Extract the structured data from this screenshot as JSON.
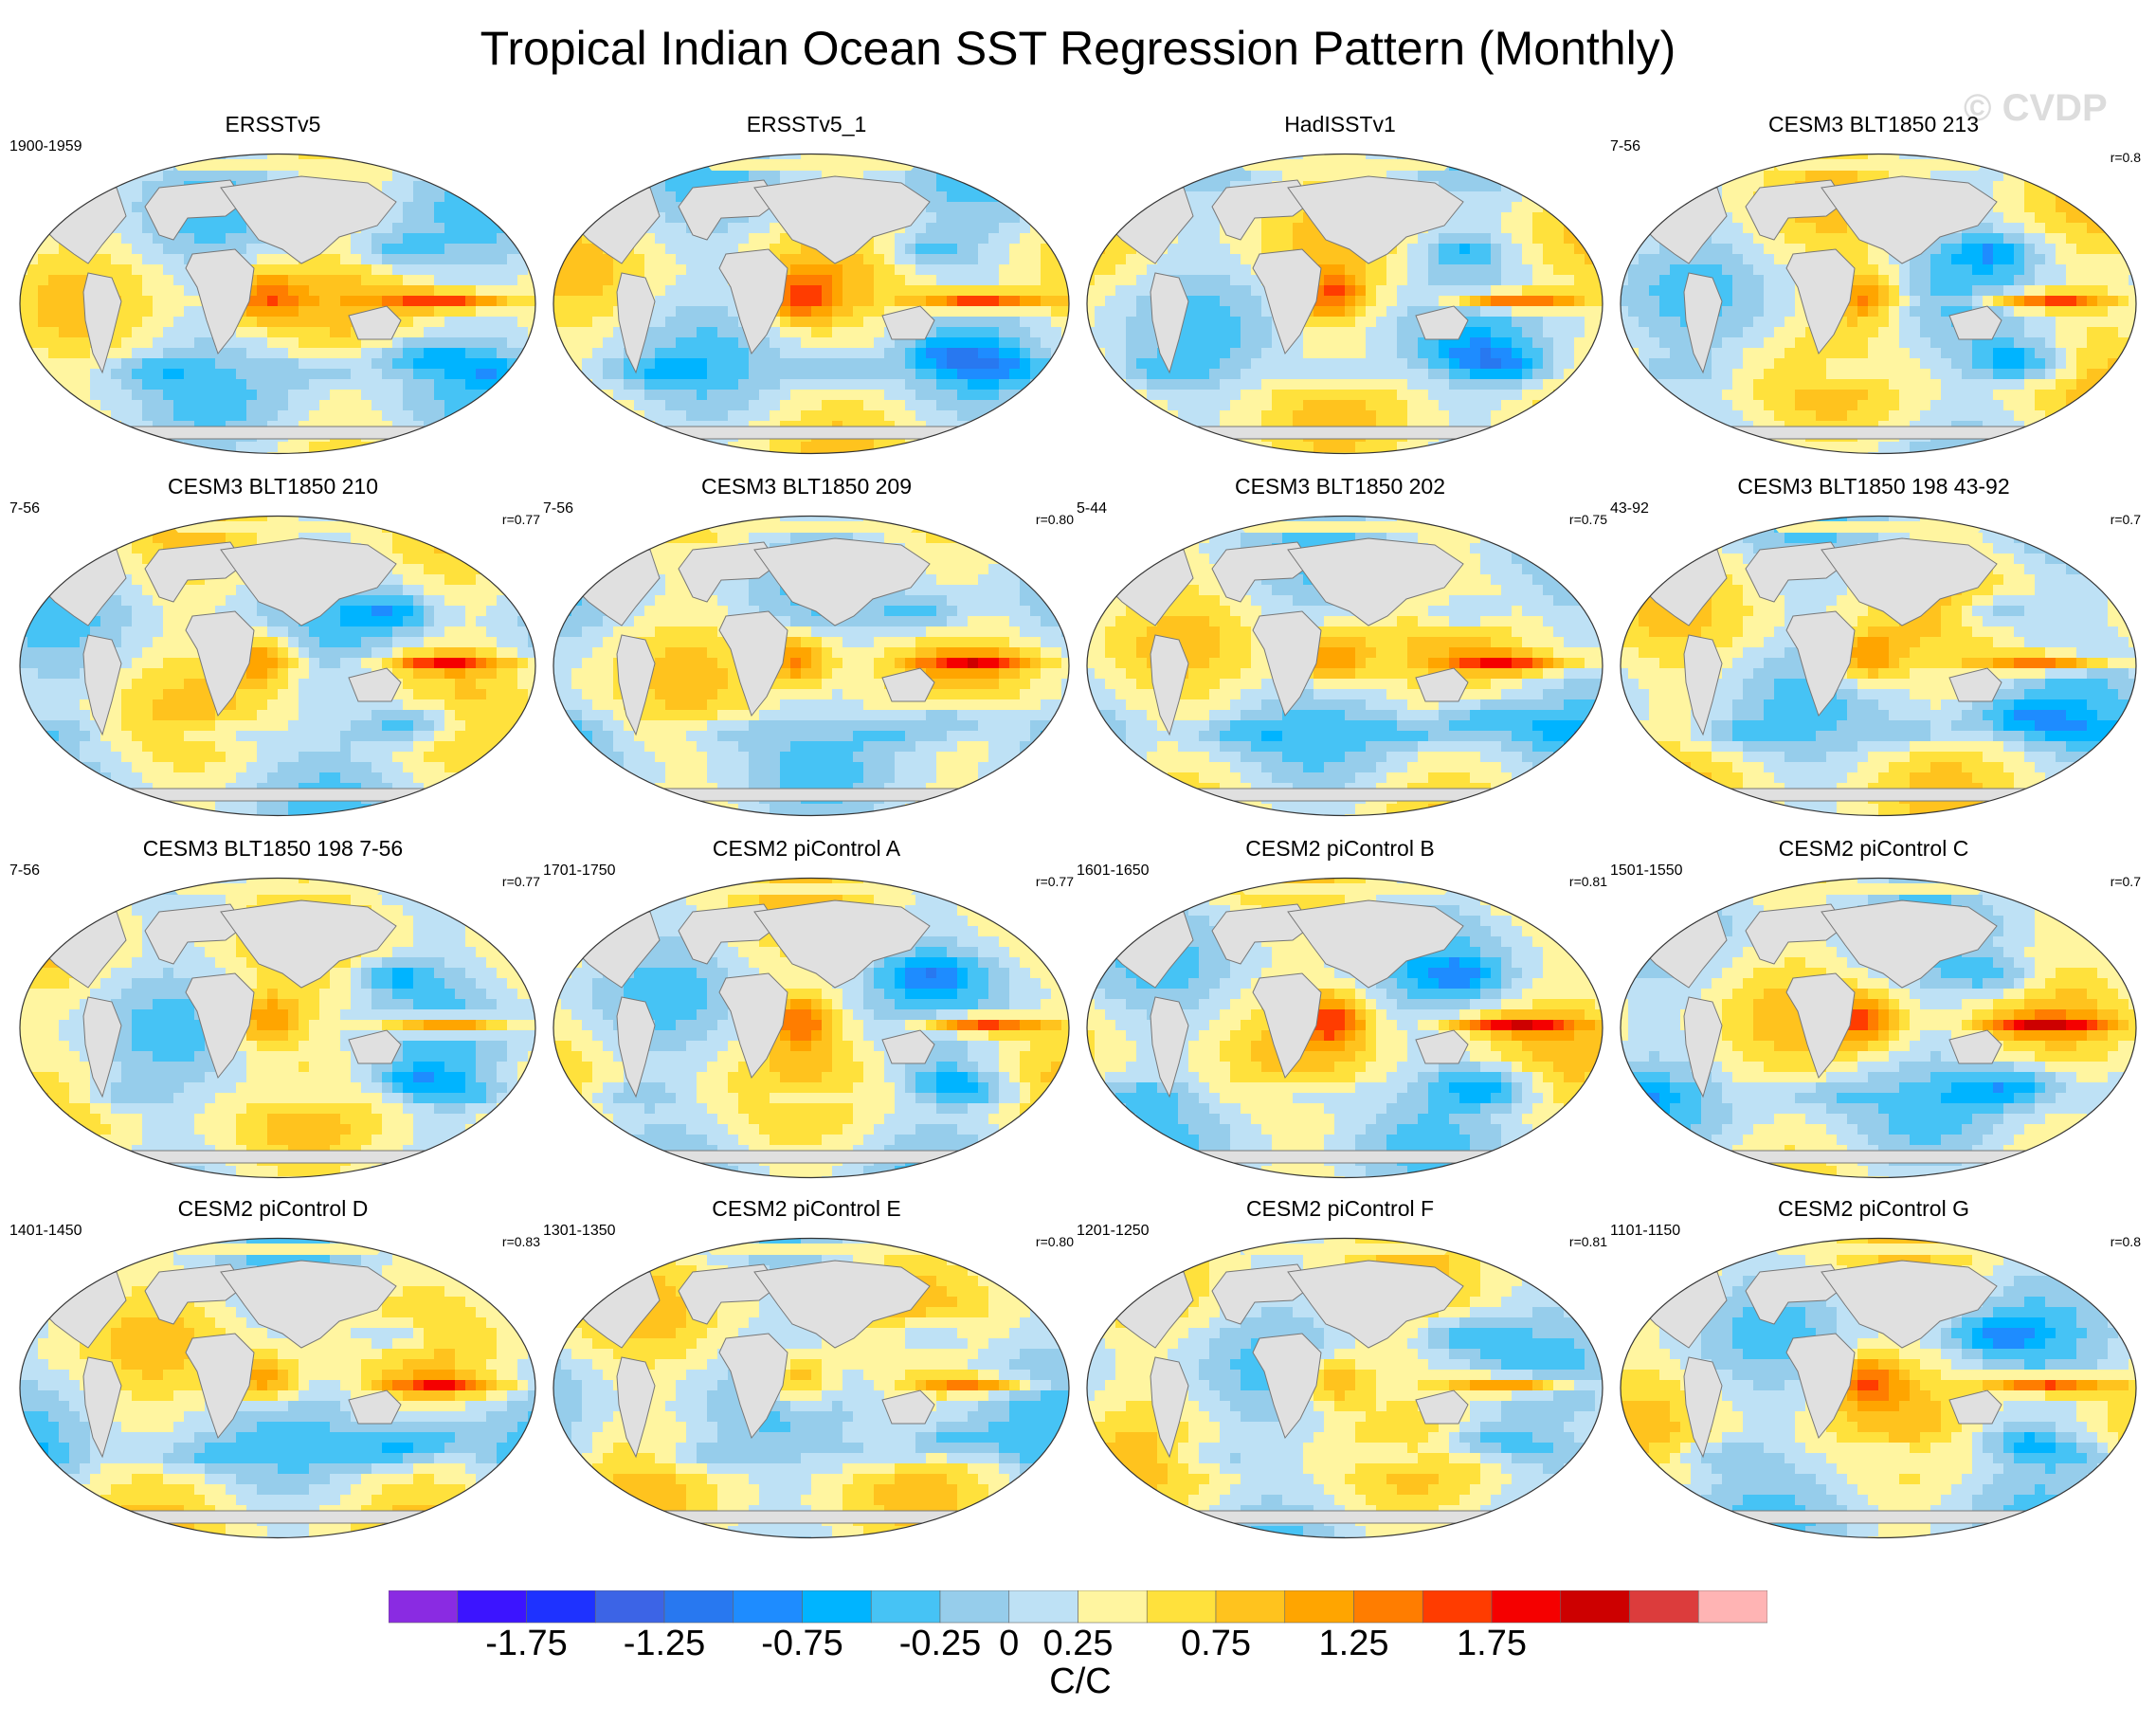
{
  "title": "Tropical Indian Ocean SST Regression Pattern (Monthly)",
  "watermark": "© CVDP",
  "chart_data": {
    "type": "heatmap",
    "projection": "global map panels",
    "panels": [
      {
        "title": "ERSSTv5",
        "period": "1900-1959",
        "r": ""
      },
      {
        "title": "ERSSTv5_1",
        "period": "",
        "r": ""
      },
      {
        "title": "HadISSTv1",
        "period": "",
        "r": ""
      },
      {
        "title": "CESM3 BLT1850 213",
        "period": "7-56",
        "r": "r=0.8"
      },
      {
        "title": "CESM3 BLT1850 210",
        "period": "7-56",
        "r": "r=0.77"
      },
      {
        "title": "CESM3 BLT1850 209",
        "period": "7-56",
        "r": "r=0.80"
      },
      {
        "title": "CESM3 BLT1850 202",
        "period": "5-44",
        "r": "r=0.75"
      },
      {
        "title": "CESM3 BLT1850 198 43-92",
        "period": "43-92",
        "r": "r=0.7"
      },
      {
        "title": "CESM3 BLT1850 198 7-56",
        "period": "7-56",
        "r": "r=0.77"
      },
      {
        "title": "CESM2 piControl A",
        "period": "1701-1750",
        "r": "r=0.77"
      },
      {
        "title": "CESM2 piControl B",
        "period": "1601-1650",
        "r": "r=0.81"
      },
      {
        "title": "CESM2 piControl C",
        "period": "1501-1550",
        "r": "r=0.7"
      },
      {
        "title": "CESM2 piControl D",
        "period": "1401-1450",
        "r": "r=0.83"
      },
      {
        "title": "CESM2 piControl E",
        "period": "1301-1350",
        "r": "r=0.80"
      },
      {
        "title": "CESM2 piControl F",
        "period": "1201-1250",
        "r": "r=0.81"
      },
      {
        "title": "CESM2 piControl G",
        "period": "1101-1150",
        "r": "r=0.8"
      }
    ],
    "colorbar": {
      "levels": [
        -2,
        -1.75,
        -1.5,
        -1.25,
        -1,
        -0.75,
        -0.5,
        -0.25,
        0,
        0.25,
        0.5,
        0.75,
        1,
        1.25,
        1.5,
        1.75,
        2
      ],
      "colors": [
        "#8a2be2",
        "#3c14ff",
        "#1e32ff",
        "#3c64e6",
        "#2878f0",
        "#1e8cff",
        "#00b4ff",
        "#46c3f5",
        "#96cdeb",
        "#bee1f5",
        "#fff5a0",
        "#ffe13c",
        "#ffc31e",
        "#ffa500",
        "#ff7d00",
        "#ff3c00",
        "#f50000",
        "#cd0000",
        "#dc3c3c",
        "#ffb4b4"
      ],
      "tick_labels": [
        "-1.75",
        "-1.25",
        "-0.75",
        "-0.25",
        "0",
        "0.25",
        "0.75",
        "1.25",
        "1.75"
      ],
      "units": "C/C"
    }
  }
}
